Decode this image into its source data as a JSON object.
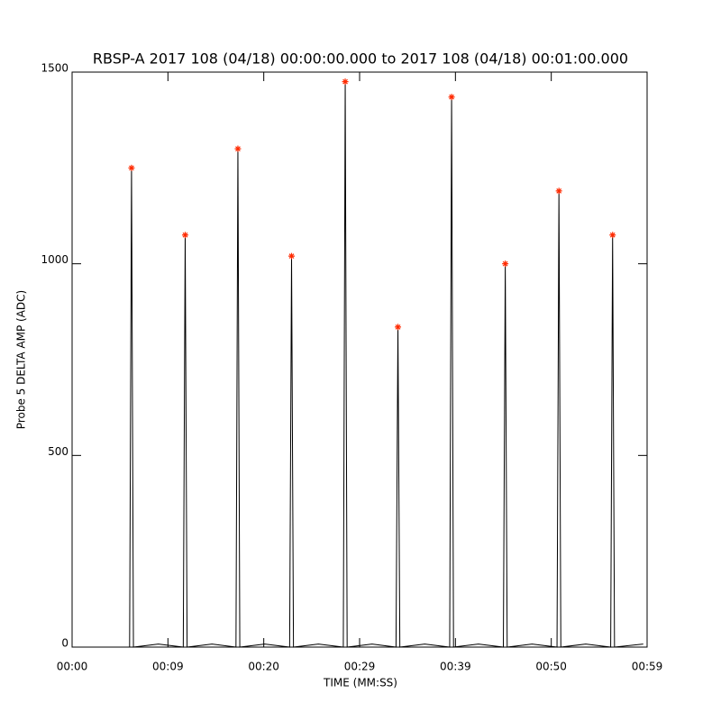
{
  "chart_data": {
    "type": "line",
    "title": "RBSP-A 2017 108 (04/18) 00:00:00.000 to 2017 108 (04/18) 00:01:00.000",
    "x_label": "TIME (MM:SS)",
    "y_label": "Probe 5 DELTA AMP (ADC)",
    "xlim": [
      0,
      60
    ],
    "ylim": [
      0,
      1500
    ],
    "xticks": [
      {
        "value": 0,
        "label": "00:00"
      },
      {
        "value": 10,
        "label": "00:09"
      },
      {
        "value": 20,
        "label": "00:20"
      },
      {
        "value": 30,
        "label": "00:29"
      },
      {
        "value": 40,
        "label": "00:39"
      },
      {
        "value": 50,
        "label": "00:50"
      },
      {
        "value": 60,
        "label": "00:59"
      }
    ],
    "yticks": [
      0,
      500,
      1000,
      1500
    ],
    "series": [
      {
        "color": "#000000",
        "x": [
          0,
          6.0,
          6.2,
          6.4,
          9.0,
          11.6,
          11.8,
          12.0,
          14.6,
          17.1,
          17.3,
          17.5,
          20.1,
          22.7,
          22.9,
          23.1,
          25.7,
          28.3,
          28.5,
          28.7,
          31.3,
          33.8,
          34.0,
          34.2,
          36.8,
          39.4,
          39.6,
          39.8,
          42.4,
          45.0,
          45.2,
          45.4,
          48.0,
          50.6,
          50.8,
          51.0,
          53.6,
          56.2,
          56.4,
          56.6,
          59.6
        ],
        "values": [
          0,
          0,
          1250,
          0,
          8,
          0,
          1075,
          0,
          8,
          0,
          1300,
          0,
          8,
          0,
          1020,
          0,
          8,
          0,
          1475,
          0,
          8,
          0,
          835,
          0,
          8,
          0,
          1435,
          0,
          8,
          0,
          1000,
          0,
          8,
          0,
          1190,
          0,
          8,
          0,
          1075,
          0,
          8
        ]
      },
      {
        "type": "scatter",
        "color": "#ff2a00",
        "x": [
          6.2,
          11.8,
          17.3,
          22.9,
          28.5,
          34.0,
          39.6,
          45.2,
          50.8,
          56.4
        ],
        "values": [
          1250,
          1075,
          1300,
          1020,
          1475,
          835,
          1435,
          1000,
          1190,
          1075
        ]
      }
    ]
  }
}
